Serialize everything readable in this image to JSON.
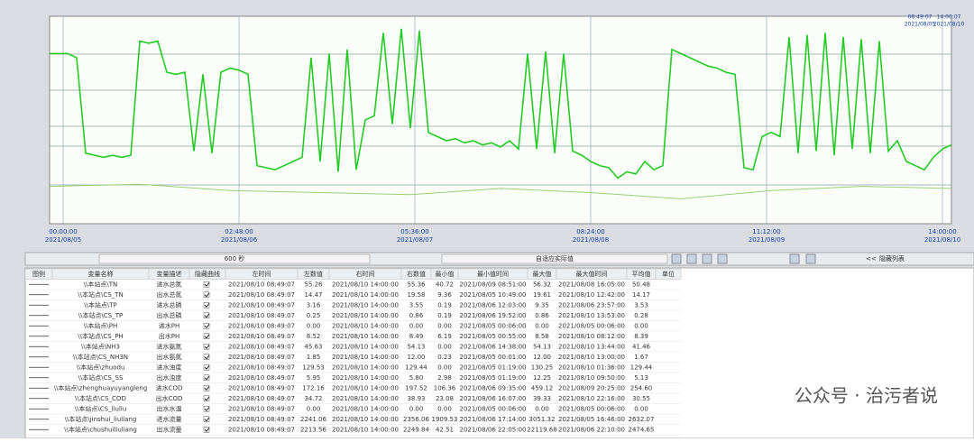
{
  "chart_data": {
    "type": "line",
    "ylim": [
      0,
      100
    ],
    "top_right": [
      "08:49:07",
      "14:00:07",
      "2021/08/05",
      "2021/08/10"
    ],
    "xticks": [
      {
        "label": "00:00:00",
        "date": "2021/08/05"
      },
      {
        "label": "02:48:00",
        "date": "2021/08/06"
      },
      {
        "label": "05:36:00",
        "date": "2021/08/07"
      },
      {
        "label": "08:24:00",
        "date": "2021/08/08"
      },
      {
        "label": "11:12:00",
        "date": "2021/08/09"
      },
      {
        "label": "14:00:00",
        "date": "2021/08/10"
      }
    ],
    "series": [
      {
        "color": "#22cc22",
        "values": [
          82,
          82,
          82,
          80,
          34,
          33,
          32,
          33,
          32,
          33,
          88,
          87,
          88,
          73,
          72,
          73,
          35,
          72,
          34,
          73,
          75,
          74,
          72,
          28,
          27,
          26,
          28,
          30,
          32,
          80,
          30,
          82,
          25,
          84,
          26,
          50,
          52,
          92,
          48,
          94,
          46,
          93,
          44,
          42,
          40,
          41,
          39,
          40,
          38,
          39,
          37,
          40,
          36,
          82,
          36,
          83,
          34,
          82,
          35,
          33,
          30,
          28,
          27,
          22,
          25,
          24,
          30,
          26,
          28,
          84,
          82,
          80,
          78,
          76,
          75,
          73,
          72,
          27,
          26,
          42,
          44,
          42,
          90,
          34,
          91,
          35,
          92,
          33,
          90,
          36,
          89,
          34,
          88,
          35,
          40,
          30,
          28,
          26,
          32,
          36,
          38
        ]
      },
      {
        "color": "#9ccf7a",
        "values": [
          18,
          19,
          16,
          15,
          14,
          17,
          15,
          12,
          16,
          18,
          17
        ]
      }
    ]
  },
  "toolbar": {
    "period": "600 秒",
    "mode": "自适应实际值",
    "hide_list": "隐藏列表",
    "collapse": "<<"
  },
  "table": {
    "header": [
      "图例",
      "变量名称",
      "变量描述",
      "隐藏曲线",
      "左时间",
      "左数值",
      "右时间",
      "右数值",
      "最小值",
      "最小值时间",
      "最大值",
      "最大值时间",
      "平均值",
      "单位"
    ],
    "rows": [
      [
        "\\\\本站点\\TN",
        "进水总氮",
        "2021/08/10 08:49:07",
        "55.26",
        "2021/08/10 14:00:00",
        "55.36",
        "40.72",
        "2021/08/09 08:51:00",
        "56.32",
        "2021/08/08 16:05:00",
        "50.48"
      ],
      [
        "\\\\本站点\\CS_TN",
        "出水总氮",
        "2021/08/10 08:49:07",
        "14.47",
        "2021/08/10 14:00:00",
        "19.58",
        "9.36",
        "2021/08/05 10:49:00",
        "19.61",
        "2021/08/10 12:42:00",
        "14.17"
      ],
      [
        "\\\\本站点\\TP",
        "进水总磷",
        "2021/08/10 08:49:07",
        "3.16",
        "2021/08/10 14:00:00",
        "3.55",
        "0.19",
        "2021/08/06 12:03:00",
        "9.35",
        "2021/08/06 23:57:00",
        "3.53"
      ],
      [
        "\\\\本站点\\CS_TP",
        "出水总磷",
        "2021/08/10 08:49:07",
        "0.25",
        "2021/08/10 14:00:00",
        "0.86",
        "0.19",
        "2021/08/06 19:52:00",
        "0.86",
        "2021/08/10 13:53:00",
        "0.28"
      ],
      [
        "\\\\本站点\\PH",
        "进水PH",
        "2021/08/10 08:49:07",
        "0.00",
        "2021/08/10 14:00:00",
        "0.00",
        "0.00",
        "2021/08/05 00:06:00",
        "0.00",
        "2021/08/05 00:06:00",
        "0.00"
      ],
      [
        "\\\\本站点\\CS_PH",
        "出水PH",
        "2021/08/10 08:49:07",
        "8.52",
        "2021/08/10 14:00:00",
        "8.49",
        "6.19",
        "2021/08/05 00:55:00",
        "8.58",
        "2021/08/10 08:12:00",
        "8.39"
      ],
      [
        "\\\\本站点\\NH3",
        "进水氨氮",
        "2021/08/10 08:49:07",
        "45.63",
        "2021/08/10 14:00:00",
        "54.13",
        "0.00",
        "2021/08/06 14:38:00",
        "54.13",
        "2021/08/10 13:44:00",
        "41.46"
      ],
      [
        "\\\\本站点\\CS_NH3N",
        "出水氨氮",
        "2021/08/10 08:49:07",
        "1.85",
        "2021/08/10 14:00:00",
        "12.00",
        "0.23",
        "2021/08/05 00:01:00",
        "12.00",
        "2021/08/10 13:00:00",
        "1.67"
      ],
      [
        "\\\\本站点\\zhuodu",
        "进水浊度",
        "2021/08/10 08:49:07",
        "129.53",
        "2021/08/10 14:00:00",
        "129.44",
        "0.00",
        "2021/08/05 01:19:00",
        "130.25",
        "2021/08/10 01:36:00",
        "129.44"
      ],
      [
        "\\\\本站点\\CS_SS",
        "出水浊度",
        "2021/08/10 08:49:07",
        "5.95",
        "2021/08/10 14:00:00",
        "5.80",
        "2.98",
        "2021/08/05 01:19:00",
        "12.25",
        "2021/08/10 09:50:00",
        "5.13"
      ],
      [
        "\\\\本站点\\zhenghuayuyangleng",
        "进水COD",
        "2021/08/10 08:49:07",
        "172.16",
        "2021/08/10 14:00:00",
        "197.52",
        "106.36",
        "2021/08/06 09:35:00",
        "459.12",
        "2021/08/09 20:25:00",
        "254.60"
      ],
      [
        "\\\\本站点\\CS_COD",
        "出水COD",
        "2021/08/10 08:49:07",
        "34.72",
        "2021/08/10 14:00:00",
        "38.93",
        "23.08",
        "2021/08/06 16:07:00",
        "39.33",
        "2021/08/10 22:16:00",
        "30.55"
      ],
      [
        "\\\\本站点\\CS_liuliu",
        "出水水温",
        "2021/08/10 08:49:07",
        "0.00",
        "2021/08/10 14:00:00",
        "0.00",
        "0.00",
        "2021/08/05 00:06:00",
        "0.00",
        "2021/08/05 00:06:00",
        "0.00"
      ],
      [
        "\\\\本站点\\jinshui_liuliang",
        "进水流量",
        "2021/08/10 08:49:07",
        "2241.06",
        "2021/08/10 14:00:00",
        "2356.06",
        "1909.53",
        "2021/08/06 17:14:00",
        "3051.32",
        "2021/08/05 16:46:00",
        "2632.07"
      ],
      [
        "\\\\本站点\\chushuiliuliang",
        "出水流量",
        "2021/08/10 08:49:07",
        "2213.56",
        "2021/08/10 14:00:00",
        "2249.84",
        "42.51",
        "2021/08/06 22:05:00",
        "22119.68",
        "2021/08/06 22:10:00",
        "2474.65"
      ]
    ]
  },
  "watermark": "公众号 · 治污者说"
}
